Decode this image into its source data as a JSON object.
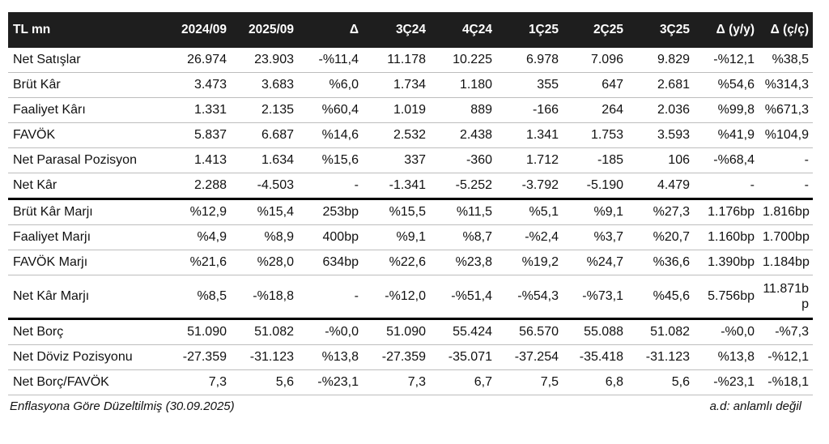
{
  "columns": [
    "TL mn",
    "2024/09",
    "2025/09",
    "Δ",
    "3Ç24",
    "4Ç24",
    "1Ç25",
    "2Ç25",
    "3Ç25",
    "Δ (y/y)",
    "Δ (ç/ç)"
  ],
  "rows": [
    {
      "label": "Net Satışlar",
      "values": [
        "26.974",
        "23.903",
        "-%11,4",
        "11.178",
        "10.225",
        "6.978",
        "7.096",
        "9.829",
        "-%12,1",
        "%38,5"
      ]
    },
    {
      "label": "Brüt Kâr",
      "values": [
        "3.473",
        "3.683",
        "%6,0",
        "1.734",
        "1.180",
        "355",
        "647",
        "2.681",
        "%54,6",
        "%314,3"
      ]
    },
    {
      "label": "Faaliyet Kârı",
      "values": [
        "1.331",
        "2.135",
        "%60,4",
        "1.019",
        "889",
        "-166",
        "264",
        "2.036",
        "%99,8",
        "%671,3"
      ]
    },
    {
      "label": "FAVÖK",
      "values": [
        "5.837",
        "6.687",
        "%14,6",
        "2.532",
        "2.438",
        "1.341",
        "1.753",
        "3.593",
        "%41,9",
        "%104,9"
      ]
    },
    {
      "label": "Net Parasal Pozisyon",
      "values": [
        "1.413",
        "1.634",
        "%15,6",
        "337",
        "-360",
        "1.712",
        "-185",
        "106",
        "-%68,4",
        "-"
      ]
    },
    {
      "label": "Net Kâr",
      "values": [
        "2.288",
        "-4.503",
        "-",
        "-1.341",
        "-5.252",
        "-3.792",
        "-5.190",
        "4.479",
        "-",
        "-"
      ]
    },
    {
      "label": "Brüt Kâr Marjı",
      "values": [
        "%12,9",
        "%15,4",
        "253bp",
        "%15,5",
        "%11,5",
        "%5,1",
        "%9,1",
        "%27,3",
        "1.176bp",
        "1.816bp"
      ]
    },
    {
      "label": "Faaliyet Marjı",
      "values": [
        "%4,9",
        "%8,9",
        "400bp",
        "%9,1",
        "%8,7",
        "-%2,4",
        "%3,7",
        "%20,7",
        "1.160bp",
        "1.700bp"
      ]
    },
    {
      "label": "FAVÖK Marjı",
      "values": [
        "%21,6",
        "%28,0",
        "634bp",
        "%22,6",
        "%23,8",
        "%19,2",
        "%24,7",
        "%36,6",
        "1.390bp",
        "1.184bp"
      ]
    },
    {
      "label": "Net Kâr Marjı",
      "values": [
        "%8,5",
        "-%18,8",
        "-",
        "-%12,0",
        "-%51,4",
        "-%54,3",
        "-%73,1",
        "%45,6",
        "5.756bp",
        "11.871bp"
      ]
    },
    {
      "label": "Net Borç",
      "values": [
        "51.090",
        "51.082",
        "-%0,0",
        "51.090",
        "55.424",
        "56.570",
        "55.088",
        "51.082",
        "-%0,0",
        "-%7,3"
      ]
    },
    {
      "label": "Net Döviz Pozisyonu",
      "values": [
        "-27.359",
        "-31.123",
        "%13,8",
        "-27.359",
        "-35.071",
        "-37.254",
        "-35.418",
        "-31.123",
        "%13,8",
        "-%12,1"
      ]
    },
    {
      "label": "Net Borç/FAVÖK",
      "values": [
        "7,3",
        "5,6",
        "-%23,1",
        "7,3",
        "6,7",
        "7,5",
        "6,8",
        "5,6",
        "-%23,1",
        "-%18,1"
      ]
    }
  ],
  "footer": {
    "note": "Enflasyona Göre Düzeltilmiş (30.09.2025)",
    "legend": "a.d: anlamlı değil"
  }
}
